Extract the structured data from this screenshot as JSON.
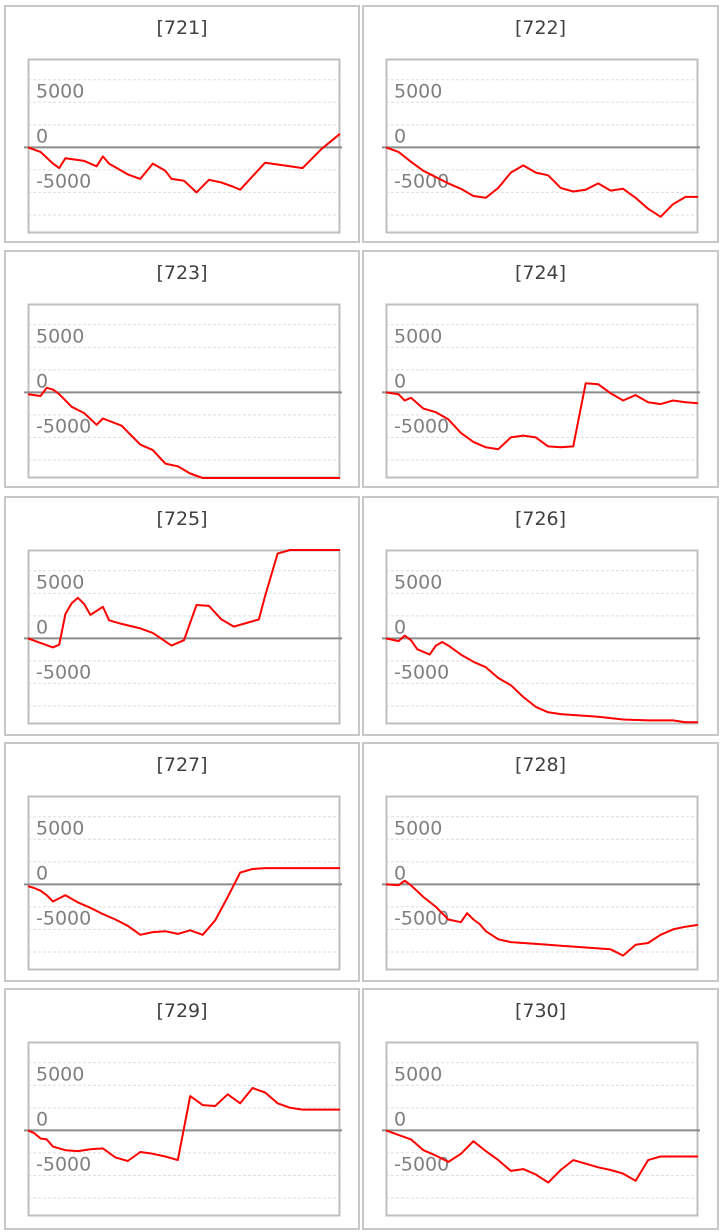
{
  "chart_data": [
    {
      "type": "line",
      "title": "[721]",
      "yticks": [
        5000,
        0,
        -5000
      ],
      "ylim": [
        -9500,
        9800
      ],
      "x": [
        0,
        1,
        2,
        3,
        4,
        5,
        6,
        7,
        8,
        9,
        10,
        11,
        12,
        13,
        14,
        15,
        16,
        17,
        18,
        19,
        20,
        21,
        22,
        23,
        24,
        25,
        26,
        27,
        28,
        29,
        30,
        31,
        32,
        33,
        34,
        35,
        36,
        37,
        38,
        39,
        40,
        41,
        42,
        43,
        44,
        45,
        46,
        47,
        48,
        49,
        50
      ],
      "series": [
        {
          "color": "#ff0000",
          "x": [
            0,
            2,
            4,
            5,
            6,
            7,
            8,
            9,
            11,
            12,
            13,
            16,
            18,
            20,
            22,
            23,
            25,
            27,
            29,
            31,
            33,
            34,
            38,
            41,
            44,
            47,
            50
          ],
          "values": [
            0,
            -500,
            -1800,
            -2300,
            -1200,
            -1300,
            -1400,
            -1500,
            -2100,
            -1000,
            -1800,
            -3000,
            -3500,
            -1800,
            -2600,
            -3500,
            -3700,
            -5000,
            -3600,
            -3900,
            -4400,
            -4700,
            -1700,
            -2000,
            -2300,
            -200,
            1500
          ]
        }
      ]
    },
    {
      "type": "line",
      "title": "[722]",
      "yticks": [
        5000,
        0,
        -5000
      ],
      "ylim": [
        -9500,
        9800
      ],
      "series": [
        {
          "color": "#ff0000",
          "x": [
            0,
            2,
            4,
            6,
            8,
            10,
            12,
            14,
            16,
            18,
            20,
            22,
            24,
            26,
            28,
            30,
            32,
            34,
            36,
            38,
            40,
            42,
            44,
            46,
            48,
            50
          ],
          "values": [
            0,
            -500,
            -1600,
            -2600,
            -3300,
            -4000,
            -4600,
            -5400,
            -5600,
            -4500,
            -2800,
            -2000,
            -2800,
            -3100,
            -4500,
            -4900,
            -4700,
            -4000,
            -4800,
            -4600,
            -5600,
            -6800,
            -7700,
            -6300,
            -5500,
            -5500
          ]
        }
      ]
    },
    {
      "type": "line",
      "title": "[723]",
      "yticks": [
        5000,
        0,
        -5000
      ],
      "ylim": [
        -9500,
        9800
      ],
      "series": [
        {
          "color": "#ff0000",
          "x": [
            0,
            2,
            3,
            4,
            5,
            7,
            9,
            11,
            12,
            15,
            18,
            20,
            22,
            24,
            26,
            28,
            30,
            32,
            34,
            50
          ],
          "values": [
            -200,
            -400,
            500,
            300,
            -200,
            -1600,
            -2300,
            -3600,
            -2900,
            -3700,
            -5800,
            -6400,
            -7900,
            -8200,
            -9000,
            -9700,
            -9900,
            -9900,
            -9900,
            -9900
          ]
        }
      ]
    },
    {
      "type": "line",
      "title": "[724]",
      "yticks": [
        5000,
        0,
        -5000
      ],
      "ylim": [
        -9500,
        9800
      ],
      "series": [
        {
          "color": "#ff0000",
          "x": [
            0,
            2,
            3,
            4,
            6,
            8,
            10,
            12,
            14,
            16,
            18,
            20,
            22,
            24,
            26,
            28,
            30,
            32,
            34,
            36,
            38,
            40,
            42,
            44,
            46,
            48,
            50
          ],
          "values": [
            0,
            -200,
            -900,
            -600,
            -1800,
            -2200,
            -3000,
            -4500,
            -5500,
            -6100,
            -6300,
            -5000,
            -4800,
            -5000,
            -6000,
            -6100,
            -6000,
            1000,
            900,
            -100,
            -900,
            -300,
            -1100,
            -1300,
            -900,
            -1100,
            -1200
          ]
        }
      ]
    },
    {
      "type": "line",
      "title": "[725]",
      "yticks": [
        5000,
        0,
        -5000
      ],
      "ylim": [
        -9500,
        9800
      ],
      "series": [
        {
          "color": "#ff0000",
          "x": [
            0,
            2,
            4,
            5,
            6,
            7,
            8,
            9,
            10,
            12,
            13,
            15,
            18,
            20,
            23,
            25,
            27,
            29,
            31,
            33,
            35,
            37,
            38,
            40,
            42,
            44,
            50
          ],
          "values": [
            0,
            -500,
            -1000,
            -700,
            2700,
            3900,
            4500,
            3800,
            2600,
            3500,
            2000,
            1600,
            1100,
            600,
            -800,
            -200,
            3700,
            3600,
            2100,
            1300,
            1700,
            2100,
            4700,
            9400,
            9900,
            9900,
            9900
          ]
        }
      ]
    },
    {
      "type": "line",
      "title": "[726]",
      "yticks": [
        5000,
        0,
        -5000
      ],
      "ylim": [
        -9500,
        9800
      ],
      "series": [
        {
          "color": "#ff0000",
          "x": [
            0,
            2,
            3,
            4,
            5,
            7,
            8,
            9,
            10,
            12,
            14,
            16,
            18,
            20,
            22,
            24,
            26,
            28,
            30,
            34,
            38,
            42,
            46,
            48,
            50
          ],
          "values": [
            0,
            -300,
            300,
            -200,
            -1200,
            -1800,
            -800,
            -400,
            -800,
            -1800,
            -2600,
            -3200,
            -4400,
            -5200,
            -6500,
            -7600,
            -8200,
            -8400,
            -8500,
            -8700,
            -9000,
            -9100,
            -9100,
            -9300,
            -9300
          ]
        }
      ]
    },
    {
      "type": "line",
      "title": "[727]",
      "yticks": [
        5000,
        0,
        -5000
      ],
      "ylim": [
        -9500,
        9800
      ],
      "series": [
        {
          "color": "#ff0000",
          "x": [
            0,
            1,
            2,
            3,
            4,
            6,
            8,
            10,
            12,
            14,
            16,
            18,
            20,
            22,
            24,
            26,
            28,
            30,
            32,
            34,
            36,
            38,
            40,
            42,
            44,
            46,
            48,
            50
          ],
          "values": [
            -200,
            -400,
            -700,
            -1200,
            -1900,
            -1200,
            -2000,
            -2600,
            -3300,
            -3900,
            -4600,
            -5600,
            -5300,
            -5200,
            -5500,
            -5100,
            -5600,
            -4000,
            -1400,
            1300,
            1700,
            1800,
            1800,
            1800,
            1800,
            1800,
            1800,
            1800
          ]
        }
      ]
    },
    {
      "type": "line",
      "title": "[728]",
      "yticks": [
        5000,
        0,
        -5000
      ],
      "ylim": [
        -9500,
        9800
      ],
      "series": [
        {
          "color": "#ff0000",
          "x": [
            0,
            2,
            3,
            4,
            6,
            8,
            10,
            12,
            13,
            14,
            15,
            16,
            18,
            20,
            22,
            24,
            26,
            28,
            30,
            32,
            34,
            36,
            38,
            40,
            42,
            44,
            46,
            48,
            50
          ],
          "values": [
            0,
            -100,
            400,
            -100,
            -1400,
            -2500,
            -3900,
            -4200,
            -3200,
            -3900,
            -4400,
            -5200,
            -6100,
            -6400,
            -6500,
            -6600,
            -6700,
            -6800,
            -6900,
            -7000,
            -7100,
            -7200,
            -7900,
            -6700,
            -6500,
            -5600,
            -5000,
            -4700,
            -4500
          ]
        }
      ]
    },
    {
      "type": "line",
      "title": "[729]",
      "yticks": [
        5000,
        0,
        -5000
      ],
      "ylim": [
        -9500,
        9800
      ],
      "series": [
        {
          "color": "#ff0000",
          "x": [
            0,
            1,
            2,
            3,
            4,
            6,
            8,
            10,
            12,
            14,
            16,
            18,
            20,
            22,
            24,
            26,
            28,
            30,
            32,
            34,
            36,
            38,
            40,
            42,
            44,
            46,
            48,
            50
          ],
          "values": [
            0,
            -300,
            -900,
            -1000,
            -1800,
            -2200,
            -2300,
            -2100,
            -2000,
            -3000,
            -3400,
            -2400,
            -2600,
            -2900,
            -3300,
            3800,
            2800,
            2700,
            4000,
            3000,
            4700,
            4200,
            3000,
            2500,
            2300,
            2300,
            2300,
            2300
          ]
        }
      ]
    },
    {
      "type": "line",
      "title": "[730]",
      "yticks": [
        5000,
        0,
        -5000
      ],
      "ylim": [
        -9500,
        9800
      ],
      "series": [
        {
          "color": "#ff0000",
          "x": [
            0,
            2,
            4,
            6,
            8,
            10,
            12,
            14,
            16,
            18,
            20,
            22,
            24,
            26,
            28,
            30,
            32,
            34,
            36,
            38,
            40,
            42,
            44,
            46,
            48,
            50
          ],
          "values": [
            0,
            -500,
            -1000,
            -2200,
            -2800,
            -3500,
            -2600,
            -1200,
            -2300,
            -3300,
            -4500,
            -4300,
            -4900,
            -5800,
            -4400,
            -3300,
            -3700,
            -4100,
            -4400,
            -4800,
            -5600,
            -3300,
            -2900,
            -2900,
            -2900,
            -2900
          ]
        }
      ]
    }
  ]
}
